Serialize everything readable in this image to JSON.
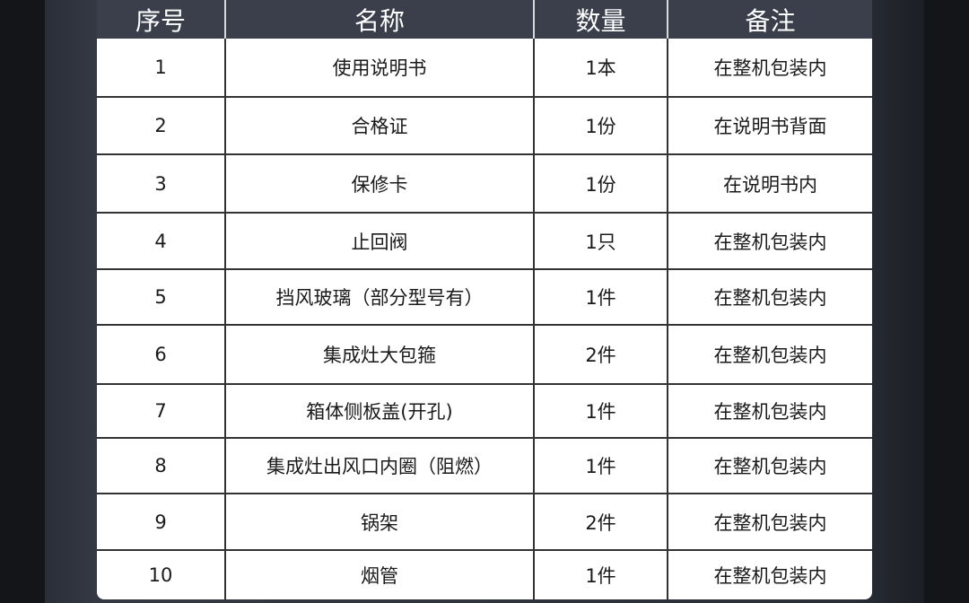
{
  "headers": [
    "序号",
    "名称",
    "数量",
    "备注"
  ],
  "rows": [
    [
      "1",
      "使用说明书",
      "1本",
      "在整机包装内"
    ],
    [
      "2",
      "合格证",
      "1份",
      "在说明书背面"
    ],
    [
      "3",
      "保修卡",
      "1份",
      "在说明书内"
    ],
    [
      "4",
      "止回阀",
      "1只",
      "在整机包装内"
    ],
    [
      "5",
      "挡风玻璃（部分型号有）",
      "1件",
      "在整机包装内"
    ],
    [
      "6",
      "集成灶大包箍",
      "2件",
      "在整机包装内"
    ],
    [
      "7",
      "箱体侧板盖(开孔)",
      "1件",
      "在整机包装内"
    ],
    [
      "8",
      "集成灶出风口内圈（阻燃）",
      "1件",
      "在整机包装内"
    ],
    [
      "9",
      "锅架",
      "2件",
      "在整机包装内"
    ],
    [
      "10",
      "烟管",
      "1件",
      "在整机包装内"
    ]
  ]
}
